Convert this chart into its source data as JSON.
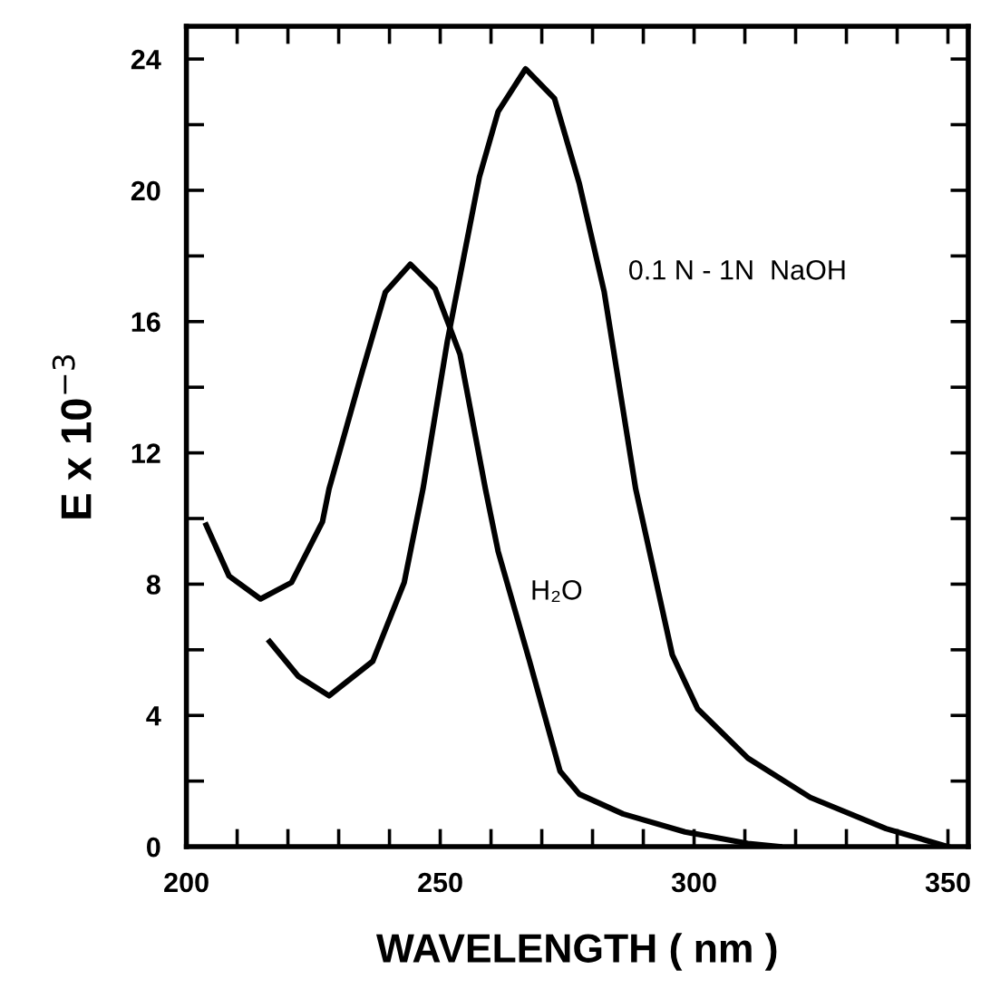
{
  "chart_data": {
    "type": "line",
    "xlabel": "WAVELENGTH ( nm )",
    "ylabel": "E x 10$^{−3}$",
    "xlim": [
      200,
      354
    ],
    "ylim": [
      0,
      25
    ],
    "xticks": [
      200,
      {
        "value": 210,
        "label": null
      },
      {
        "value": 220,
        "label": null
      },
      {
        "value": 230,
        "label": null
      },
      {
        "value": 240,
        "label": null
      },
      250,
      {
        "value": 260,
        "label": null
      },
      {
        "value": 270,
        "label": null
      },
      {
        "value": 280,
        "label": null
      },
      {
        "value": 290,
        "label": null
      },
      300,
      {
        "value": 310,
        "label": null
      },
      {
        "value": 320,
        "label": null
      },
      {
        "value": 330,
        "label": null
      },
      {
        "value": 340,
        "label": null
      },
      350
    ],
    "yticks": [
      0,
      {
        "value": 2,
        "label": null
      },
      4,
      {
        "value": 6,
        "label": null
      },
      8,
      {
        "value": 10,
        "label": null
      },
      12,
      {
        "value": 14,
        "label": null
      },
      16,
      {
        "value": 18,
        "label": null
      },
      20,
      {
        "value": 22,
        "label": null
      },
      24
    ],
    "grid": false,
    "legend": false,
    "marker": "none",
    "line_style": "solid",
    "series": [
      {
        "color": "#000000",
        "x": [
          216.4,
          222,
          228.1,
          236.7,
          242.9,
          246.6,
          251.4,
          257.7,
          261.4,
          266.8,
          272.5,
          277.4,
          282.3,
          288.5,
          295.7,
          300.7,
          310.6,
          322.9,
          337.8,
          350
        ],
        "values": [
          6.25,
          5.2,
          4.6,
          5.65,
          8.05,
          10.9,
          15.4,
          20.4,
          22.4,
          23.7,
          22.8,
          20.2,
          16.9,
          10.9,
          5.85,
          4.2,
          2.7,
          1.5,
          0.55,
          0
        ]
      },
      {
        "color": "#000000",
        "x": [
          203.9,
          208.4,
          214.6,
          220.7,
          226.8,
          228.1,
          234.3,
          239.2,
          244.1,
          249,
          253.9,
          258.9,
          261.4,
          267.6,
          273.6,
          277.4,
          286,
          298.2,
          310.6,
          316.8
        ],
        "values": [
          9.8,
          8.25,
          7.55,
          8.05,
          9.9,
          10.9,
          14.3,
          16.9,
          17.75,
          17.0,
          15.0,
          10.9,
          9.0,
          5.65,
          2.3,
          1.6,
          1.0,
          0.45,
          0.1,
          0
        ]
      }
    ],
    "annotations": [
      "0.1 N - 1N  NaOH",
      "H₂O"
    ]
  }
}
